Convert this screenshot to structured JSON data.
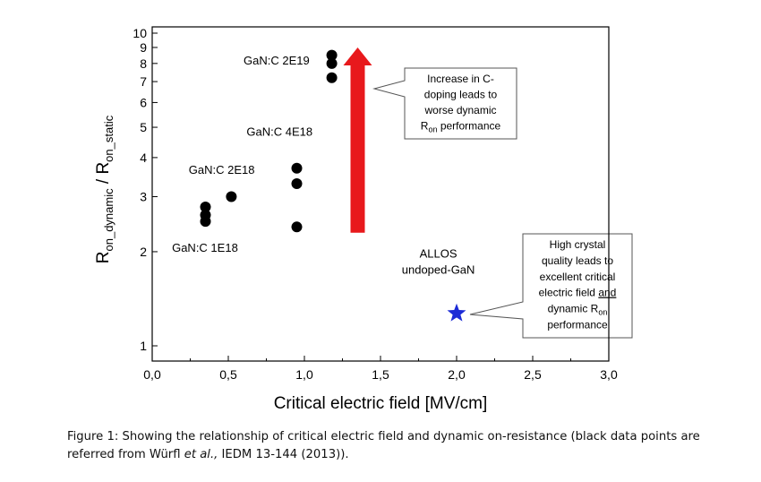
{
  "chart_data": {
    "type": "scatter",
    "xlabel": "Critical electric field [MV/cm]",
    "ylabel": {
      "main": "R",
      "sub1": "on_dynamic",
      "sep": " / R",
      "sub2": "on_static"
    },
    "xlim": [
      0.0,
      3.0
    ],
    "ylim": [
      1,
      10
    ],
    "y_scale": "log",
    "x_ticks": [
      {
        "value": 0.0,
        "label": "0,0"
      },
      {
        "value": 0.5,
        "label": "0,5"
      },
      {
        "value": 1.0,
        "label": "1,0"
      },
      {
        "value": 1.5,
        "label": "1,5"
      },
      {
        "value": 2.0,
        "label": "2,0"
      },
      {
        "value": 2.5,
        "label": "2,5"
      },
      {
        "value": 3.0,
        "label": "3,0"
      }
    ],
    "y_ticks": [
      {
        "value": 1,
        "label": "1"
      },
      {
        "value": 2,
        "label": "2"
      },
      {
        "value": 3,
        "label": "3"
      },
      {
        "value": 4,
        "label": "4"
      },
      {
        "value": 5,
        "label": "5"
      },
      {
        "value": 6,
        "label": "6"
      },
      {
        "value": 7,
        "label": "7"
      },
      {
        "value": 8,
        "label": "8"
      },
      {
        "value": 9,
        "label": "9"
      },
      {
        "value": 10,
        "label": "10"
      }
    ],
    "series": [
      {
        "marker": "circle",
        "color": "#000000",
        "points": [
          {
            "x": 0.35,
            "y": 2.5
          },
          {
            "x": 0.35,
            "y": 2.62
          },
          {
            "x": 0.35,
            "y": 2.78
          },
          {
            "x": 0.52,
            "y": 3.0
          },
          {
            "x": 0.95,
            "y": 2.4
          },
          {
            "x": 0.95,
            "y": 3.3
          },
          {
            "x": 0.95,
            "y": 3.7
          },
          {
            "x": 1.18,
            "y": 7.2
          },
          {
            "x": 1.18,
            "y": 8.0
          },
          {
            "x": 1.18,
            "y": 8.5
          }
        ]
      },
      {
        "marker": "star",
        "color": "#1c2bd6",
        "points": [
          {
            "x": 2.0,
            "y": 1.27
          }
        ]
      }
    ],
    "point_labels": [
      {
        "text": "GaN:C 1E18",
        "x": 0.13,
        "y": 2.0
      },
      {
        "text": "GaN:C 2E18",
        "x": 0.24,
        "y": 3.55
      },
      {
        "text": "GaN:C 4E18",
        "x": 0.62,
        "y": 4.7
      },
      {
        "text": "GaN:C 2E19",
        "x": 0.6,
        "y": 7.95
      },
      {
        "lines": [
          "ALLOS",
          "undoped-GaN"
        ],
        "x": 1.88,
        "y": 1.7
      }
    ],
    "arrow": {
      "x": 1.35,
      "y_from": 2.3,
      "y_to": 9.0,
      "color": "#e8191c"
    },
    "callouts": [
      {
        "lines": [
          "Increase in C-",
          "doping leads to",
          "worse dynamic",
          "R_on performance"
        ]
      },
      {
        "lines": [
          "High crystal",
          "quality leads to",
          "excellent critical",
          "electric field and",
          "dynamic R_on",
          "performance"
        ]
      }
    ]
  },
  "caption": {
    "part1": "Figure 1: Showing the relationship of critical electric field and dynamic on-resistance (black data points are referred from Würfl ",
    "italic": "et al.,",
    "part2": " IEDM 13-144 (2013))."
  }
}
